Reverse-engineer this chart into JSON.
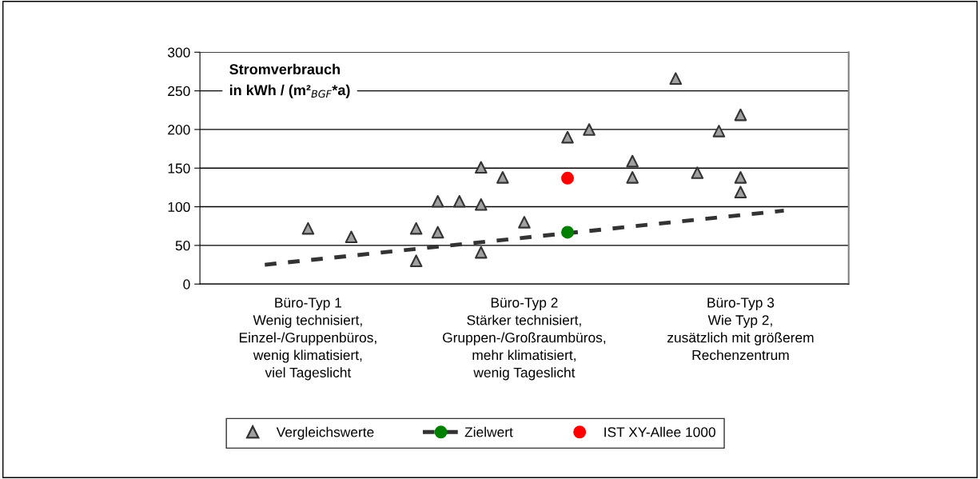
{
  "chart_data": {
    "type": "scatter",
    "ylabel": "Stromverbrauch\nin kWh / (m²$_{BGF}$*a)",
    "categories": [
      null,
      null,
      null,
      null,
      null,
      "Büro-Typ 1\nWenig technisiert,\nEinzel-/Gruppenbüros,\nwenig klimatisiert,\nviel Tageslicht",
      null,
      null,
      null,
      null,
      null,
      null,
      null,
      null,
      null,
      "Büro-Typ 2\nStärker technisiert,\nGruppen-/Großraumbüros,\nmehr klimatisiert,\nwenig Tageslicht",
      null,
      null,
      null,
      null,
      null,
      null,
      null,
      null,
      null,
      "Büro-Typ 3\nWie Typ 2,\nzusätzlich mit größerem\nRechenzentrum",
      null,
      null,
      null,
      null,
      null
    ],
    "ylim": [
      0,
      300
    ],
    "yticks": [
      0,
      50,
      100,
      150,
      200,
      250,
      300
    ],
    "grid": "y",
    "legend": "bottom",
    "series": [
      {
        "name": "Vergleichswerte",
        "marker": "triangle",
        "color": "#a0a0a0",
        "values": [
          null,
          null,
          null,
          null,
          null,
          72,
          null,
          61,
          null,
          null,
          72,
          107,
          107,
          151,
          138,
          80,
          null,
          190,
          200,
          null,
          159,
          null,
          266,
          144,
          198,
          219,
          null,
          null,
          null,
          null,
          null
        ]
      },
      {
        "marker": "triangle",
        "color": "#a0a0a0",
        "values": [
          null,
          null,
          null,
          null,
          null,
          null,
          null,
          null,
          null,
          null,
          30,
          67,
          null,
          103,
          null,
          null,
          null,
          null,
          null,
          null,
          138,
          null,
          null,
          null,
          null,
          138,
          null,
          null,
          null,
          null,
          null
        ]
      },
      {
        "marker": "triangle",
        "color": "#a0a0a0",
        "values": [
          null,
          null,
          null,
          null,
          null,
          null,
          null,
          null,
          null,
          null,
          null,
          null,
          null,
          41,
          null,
          null,
          null,
          null,
          null,
          null,
          null,
          null,
          null,
          null,
          null,
          119,
          null,
          null,
          null,
          null,
          null
        ]
      },
      {
        "name": "Zielwert",
        "type": "line",
        "line_style": "dashed",
        "marker": "none",
        "color": "#333333",
        "values": [
          null,
          null,
          null,
          25,
          null,
          null,
          null,
          null,
          null,
          null,
          null,
          null,
          null,
          null,
          null,
          null,
          null,
          null,
          null,
          null,
          null,
          null,
          null,
          null,
          null,
          null,
          null,
          95,
          null,
          null,
          null
        ]
      },
      {
        "marker": "circle",
        "color": "#008000",
        "values": [
          null,
          null,
          null,
          null,
          null,
          null,
          null,
          null,
          null,
          null,
          null,
          null,
          null,
          null,
          null,
          null,
          null,
          67,
          null,
          null,
          null,
          null,
          null,
          null,
          null,
          null,
          null,
          null,
          null,
          null,
          null
        ]
      },
      {
        "name": "IST XY-Allee 1000",
        "marker": "circle",
        "color": "#ff0000",
        "values": [
          null,
          null,
          null,
          null,
          null,
          null,
          null,
          null,
          null,
          null,
          null,
          null,
          null,
          null,
          null,
          null,
          null,
          137,
          null,
          null,
          null,
          null,
          null,
          null,
          null,
          null,
          null,
          null,
          null,
          null,
          null
        ]
      }
    ]
  }
}
